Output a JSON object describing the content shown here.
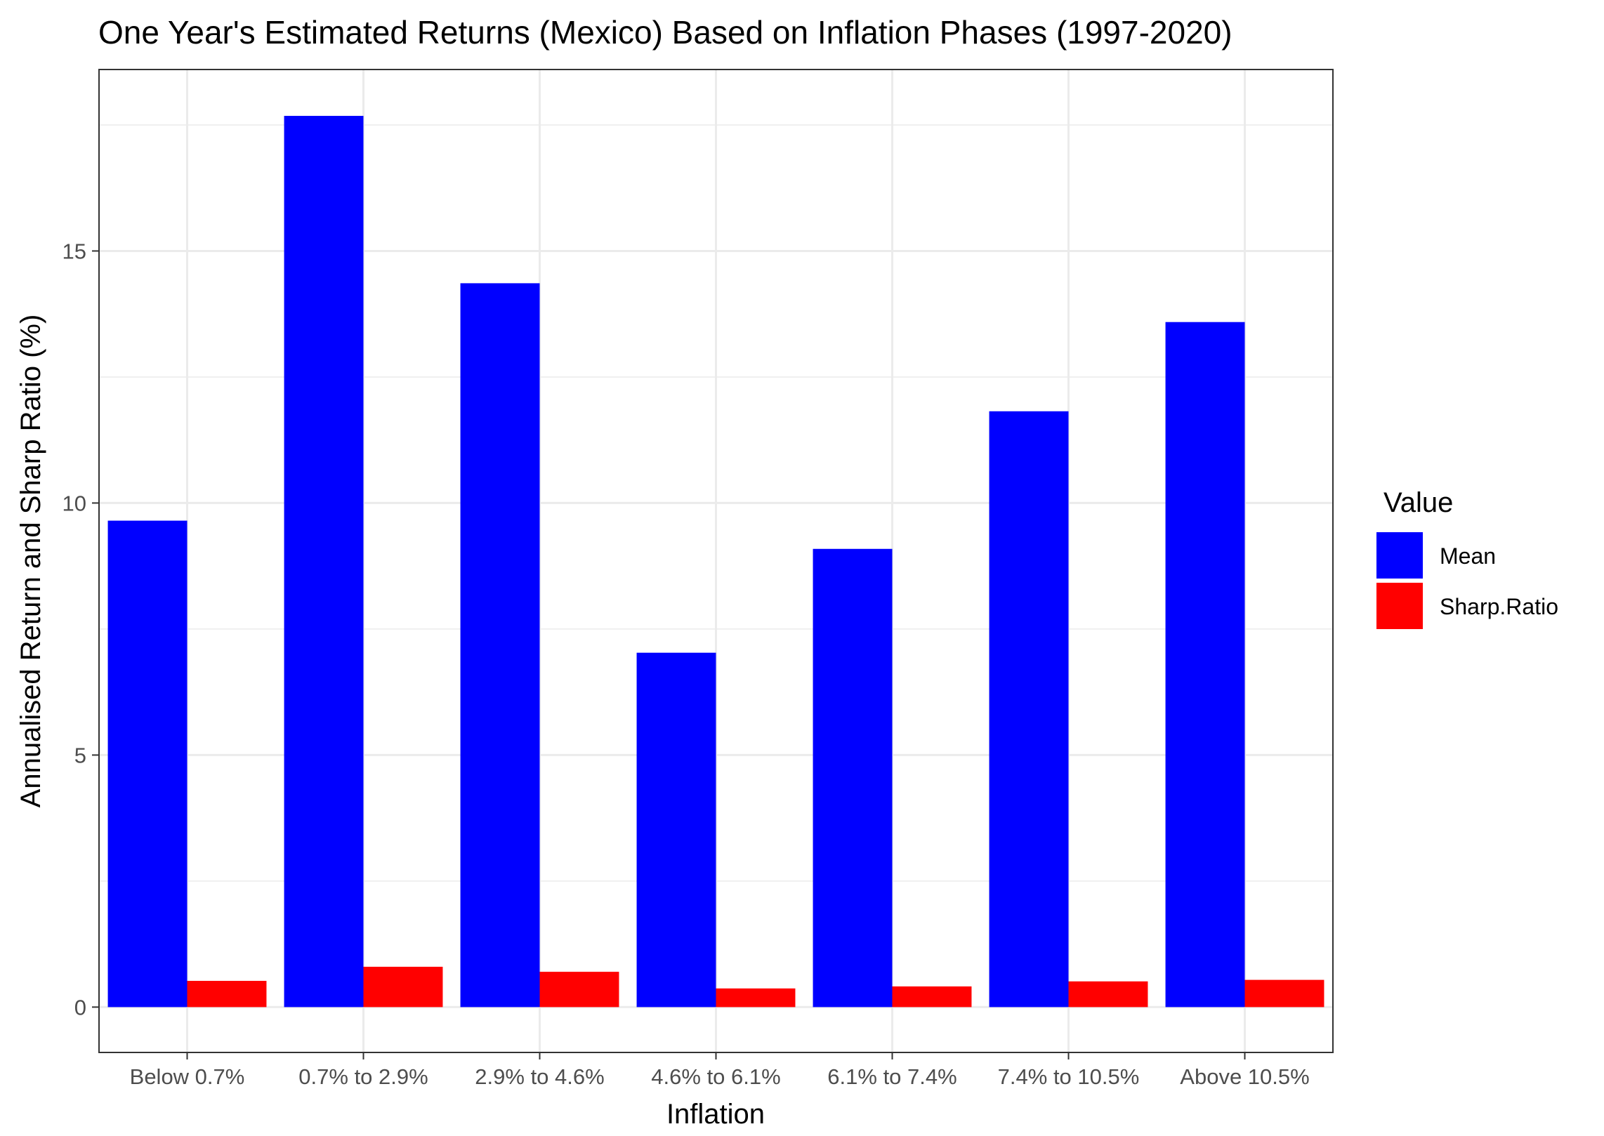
{
  "chart_data": {
    "type": "bar",
    "title": "One Year's Estimated Returns (Mexico) Based on Inflation Phases (1997-2020)",
    "xlabel": "Inflation",
    "ylabel": "Annualised Return and Sharp Ratio (%)",
    "categories": [
      "Below 0.7%",
      "0.7% to 2.9%",
      "2.9% to 4.6%",
      "4.6% to 6.1%",
      "6.1% to 7.4%",
      "7.4% to 10.5%",
      "Above 10.5%"
    ],
    "series": [
      {
        "name": "Mean",
        "color": "#0000FF",
        "values": [
          9.65,
          17.68,
          14.36,
          7.03,
          9.09,
          11.82,
          13.59
        ]
      },
      {
        "name": "Sharp.Ratio",
        "color": "#FF0000",
        "values": [
          0.52,
          0.8,
          0.7,
          0.37,
          0.41,
          0.51,
          0.54
        ]
      }
    ],
    "ylim": [
      -0.9,
      18.6
    ],
    "yticks": [
      0,
      5,
      10,
      15
    ],
    "grid": true,
    "legend": {
      "title": "Value",
      "position": "right"
    }
  }
}
